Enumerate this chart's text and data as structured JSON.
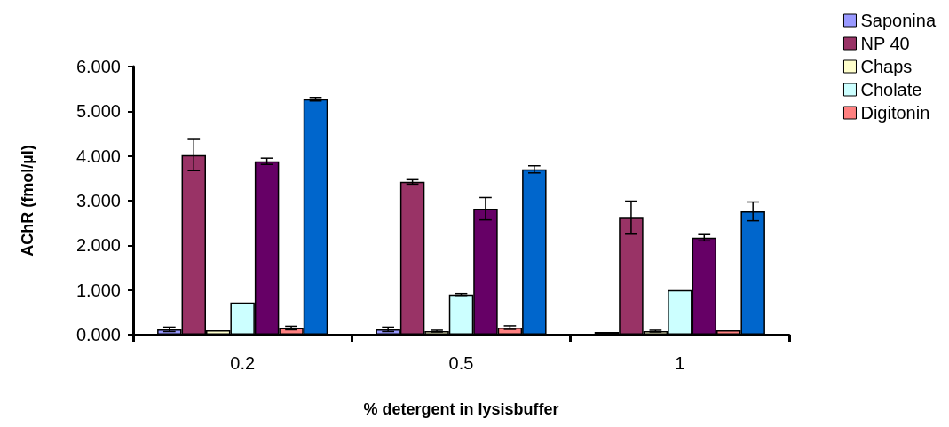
{
  "chart_data": {
    "type": "bar",
    "xlabel": "% detergent in lysisbuffer",
    "ylabel": "AChR (fmol/µl)",
    "categories": [
      "0.2",
      "0.5",
      "1"
    ],
    "series": [
      {
        "name": "Saponina",
        "color": "#9999ff",
        "values": [
          0.12,
          0.12,
          0.06
        ],
        "errors": [
          0.05,
          0.05,
          null
        ]
      },
      {
        "name": "NP 40",
        "color": "#993366",
        "values": [
          4.02,
          3.42,
          2.62
        ],
        "errors": [
          0.35,
          0.05,
          0.37
        ]
      },
      {
        "name": "Chaps",
        "color": "#ffffcc",
        "values": [
          0.1,
          0.08,
          0.08
        ],
        "errors": [
          null,
          0.02,
          0.02
        ]
      },
      {
        "name": "Cholate",
        "color": "#ccffff",
        "values": [
          0.72,
          0.9,
          1.0
        ],
        "errors": [
          null,
          0.02,
          null
        ]
      },
      {
        "color": "#660066",
        "values": [
          3.88,
          2.82,
          2.17
        ],
        "errors": [
          0.07,
          0.25,
          0.07
        ]
      },
      {
        "name": "Digitonin",
        "color": "#ff8080",
        "values": [
          0.15,
          0.16,
          0.1
        ],
        "errors": [
          0.04,
          0.04,
          null
        ]
      },
      {
        "color": "#0066cc",
        "values": [
          5.27,
          3.7,
          2.76
        ],
        "errors": [
          0.04,
          0.08,
          0.21
        ]
      }
    ],
    "ylim": [
      0,
      6
    ],
    "yticks": [
      {
        "value": 0,
        "label": "0.000"
      },
      {
        "value": 1,
        "label": "1.000"
      },
      {
        "value": 2,
        "label": "2.000"
      },
      {
        "value": 3,
        "label": "3.000"
      },
      {
        "value": 4,
        "label": "4.000"
      },
      {
        "value": 5,
        "label": "5.000"
      },
      {
        "value": 6,
        "label": "6.000"
      }
    ],
    "grid": false,
    "legend": "right"
  }
}
